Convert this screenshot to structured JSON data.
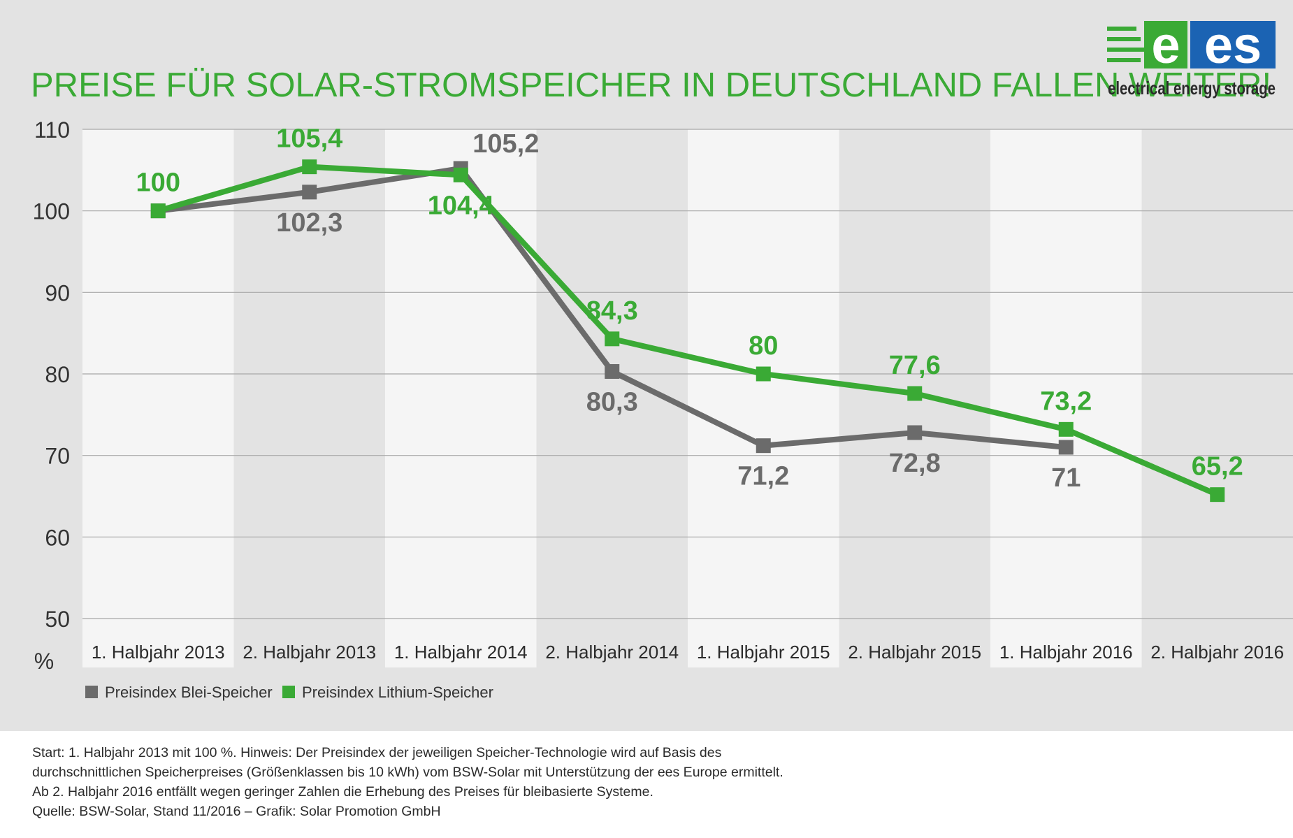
{
  "title": "PREISE FÜR SOLAR-STROMSPEICHER IN DEUTSCHLAND FALLEN WEITER!",
  "logo": {
    "text_e": "e",
    "text_es": "es",
    "tagline": "electrical energy storage",
    "colors": {
      "green": "#3aaa35",
      "blue": "#1b63b3"
    }
  },
  "colors": {
    "background": "#e3e3e3",
    "band_light": "#f5f5f5",
    "band_dark": "#e3e3e3",
    "green": "#3aaa35",
    "gray": "#6b6b6b",
    "title": "#3aaa35"
  },
  "chart_data": {
    "type": "line",
    "title": "PREISE FÜR SOLAR-STROMSPEICHER IN DEUTSCHLAND FALLEN WEITER!",
    "xlabel": "",
    "ylabel": "%",
    "ylim": [
      50,
      110
    ],
    "yticks": [
      110,
      100,
      90,
      80,
      70,
      60,
      50
    ],
    "grid": true,
    "legend_position": "bottom-left",
    "categories": [
      "1. Halbjahr 2013",
      "2. Halbjahr 2013",
      "1. Halbjahr 2014",
      "2. Halbjahr 2014",
      "1. Halbjahr 2015",
      "2. Halbjahr 2015",
      "1. Halbjahr 2016",
      "2. Halbjahr 2016"
    ],
    "series": [
      {
        "name": "Preisindex Blei-Speicher",
        "color": "#6b6b6b",
        "values": [
          100,
          102.3,
          105.2,
          80.3,
          71.2,
          72.8,
          71,
          null
        ],
        "labels": [
          "",
          "102,3",
          "105,2",
          "80,3",
          "71,2",
          "72,8",
          "71",
          ""
        ]
      },
      {
        "name": "Preisindex Lithium-Speicher",
        "color": "#3aaa35",
        "values": [
          100,
          105.4,
          104.4,
          84.3,
          80,
          77.6,
          73.2,
          65.2
        ],
        "labels": [
          "100",
          "105,4",
          "104,4",
          "84,3",
          "80",
          "77,6",
          "73,2",
          "65,2"
        ]
      }
    ]
  },
  "footnote": [
    "Start: 1. Halbjahr 2013 mit 100 %. Hinweis: Der Preisindex der jeweiligen Speicher-Technologie wird auf Basis des",
    "durchschnittlichen Speicherpreises (Größenklassen bis 10 kWh) vom BSW-Solar mit Unterstützung der ees Europe ermittelt.",
    "Ab 2. Halbjahr 2016 entfällt wegen geringer Zahlen die Erhebung des Preises für bleibasierte Systeme.",
    "Quelle: BSW-Solar, Stand 11/2016 – Grafik: Solar Promotion GmbH"
  ]
}
